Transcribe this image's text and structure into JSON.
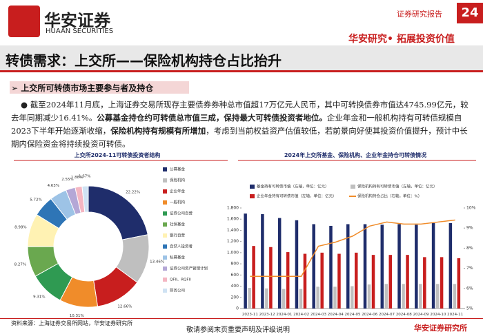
{
  "header": {
    "logo_cn": "华安证券",
    "logo_en": "HUAAN SECURITIES",
    "report_type": "证券研究报告",
    "page_number": "24",
    "slogan": "华安研究• 拓展投资价值"
  },
  "title": "转债需求：上交所——保险机构持仓占比抬升",
  "subtitle": "上交所可转债市场主要参与者及持仓",
  "paragraph": [
    "截至2024年11月底，上海证券交易所现存主要债券券种总市值超17万亿元人民币，其中可转换债券市值达4745.99亿元，较去年同期减少16.41%。",
    "公募基金持仓约可转债总市值三成，保持最大可转债投资者地位。",
    "企业年金和一般机构持有可转债规模自2023下半年开始逐渐收缩，",
    "保险机构持有规模有所增加",
    "，考虑到当前权益资产估值较低，若前景向好使其投资价值提升，预计中长期内保险资金将持续投资可转债。"
  ],
  "chart_data": [
    {
      "type": "pie",
      "title": "上交所2024-11可转债投资者结构",
      "categories": [
        "公募基金",
        "保险机构",
        "企业年金",
        "一般机构",
        "证券公司自营",
        "社保基金",
        "银行自营",
        "自然人投资者",
        "私募基金",
        "证券公司资产管理计划",
        "QFII、RQFII",
        "财务公司"
      ],
      "values": [
        22.22,
        13.46,
        12.66,
        10.31,
        9.31,
        8.27,
        8.98,
        5.72,
        4.63,
        2.55,
        1.88,
        1.67
      ],
      "value_labels": [
        "22.22%",
        "13.46%",
        "12.66%",
        "10.31%",
        "9.31%",
        "8.27%",
        "8.98%",
        "5.72%",
        "4.63%",
        "2.55%",
        "1.88%",
        "1.67%"
      ],
      "colors": [
        "#1f2d6b",
        "#bfbfbf",
        "#c81e1e",
        "#f08c2a",
        "#2f9a52",
        "#6aa84f",
        "#fff2b3",
        "#2e75b6",
        "#9dc3e6",
        "#b4a7d6",
        "#f4b6c2",
        "#cfe2f3"
      ]
    },
    {
      "type": "bar",
      "title": "2024年上交所基金、保险机构、企业年金持仓可转债情况",
      "categories": [
        "2023-11",
        "2023-12",
        "2024-01",
        "2024-02",
        "2024-03",
        "2024-04",
        "2024-05",
        "2024-06",
        "2024-07",
        "2024-08",
        "2024-09",
        "2024-10",
        "2024-11"
      ],
      "series": [
        {
          "name": "基金持有可转债市值（左轴，单位：亿元）",
          "color": "#1f2d6b",
          "values": [
            1700,
            1690,
            1620,
            1580,
            1510,
            1480,
            1510,
            1510,
            1500,
            1510,
            1500,
            1530,
            1530
          ]
        },
        {
          "name": "保险机构持有可转债市值（左轴，单位：亿元）",
          "color": "#bfbfbf",
          "values": [
            370,
            360,
            350,
            350,
            390,
            390,
            400,
            430,
            440,
            440,
            440,
            440,
            440
          ]
        },
        {
          "name": "企业年金持有可转债市值（左轴，单位：亿元）",
          "color": "#c81e1e",
          "values": [
            1120,
            1100,
            1010,
            980,
            1000,
            980,
            1000,
            960,
            960,
            960,
            920,
            920,
            900
          ]
        },
        {
          "name": "保险机构持仓占比（右轴，单位：%）",
          "color": "#f08c2a",
          "type": "line",
          "axis": "y2",
          "values": [
            6.6,
            6.6,
            6.6,
            6.6,
            8.1,
            8.3,
            8.6,
            9.1,
            9.3,
            9.2,
            9.2,
            9.3,
            9.4
          ]
        }
      ],
      "ylim": [
        0,
        1800
      ],
      "yticks": [
        0,
        200,
        400,
        600,
        800,
        {
          "value": 1000,
          "label": "1,000"
        },
        {
          "value": 1200,
          "label": "1,200"
        },
        {
          "value": 1400,
          "label": "1,400"
        },
        {
          "value": 1600,
          "label": "1,600"
        },
        {
          "value": 1800,
          "label": "1,800"
        }
      ],
      "y2lim": [
        5,
        10
      ],
      "y2ticks": [
        {
          "value": 5,
          "label": "5%"
        },
        {
          "value": 6,
          "label": "6%"
        },
        {
          "value": 7,
          "label": "7%"
        },
        {
          "value": 8,
          "label": "8%"
        },
        {
          "value": 9,
          "label": "9%"
        },
        {
          "value": 10,
          "label": "10%"
        }
      ]
    }
  ],
  "footer": {
    "source": "资料来源：上海证券交易所网站，华安证券研究所",
    "disclaimer": "敬请参阅末页重要声明及评级说明",
    "company": "华安证券研究所"
  }
}
